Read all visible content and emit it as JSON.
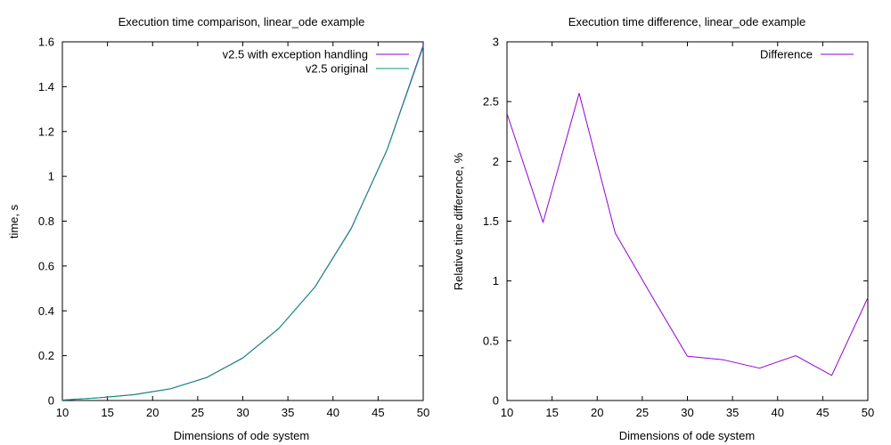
{
  "chart_data": [
    {
      "type": "line",
      "title": "Execution time comparison, linear_ode example",
      "xlabel": "Dimensions of ode system",
      "ylabel": "time, s",
      "xlim": [
        10,
        50
      ],
      "ylim": [
        0,
        1.6
      ],
      "x_ticks": [
        "10",
        "15",
        "20",
        "25",
        "30",
        "35",
        "40",
        "45",
        "50"
      ],
      "y_ticks": [
        "0",
        "0.2",
        "0.4",
        "0.6",
        "0.8",
        "1",
        "1.2",
        "1.4",
        "1.6"
      ],
      "grid": false,
      "legend_position": "top-right",
      "x": [
        10,
        14,
        18,
        22,
        26,
        30,
        34,
        38,
        42,
        46,
        50
      ],
      "series": [
        {
          "name": "v2.5 with exception handling",
          "color": "#9400d3",
          "values": [
            0.002,
            0.012,
            0.027,
            0.053,
            0.103,
            0.19,
            0.322,
            0.507,
            0.767,
            1.12,
            1.585
          ]
        },
        {
          "name": "v2.5 original",
          "color": "#009e73",
          "values": [
            0.002,
            0.012,
            0.026,
            0.052,
            0.102,
            0.189,
            0.321,
            0.506,
            0.765,
            1.118,
            1.578
          ]
        }
      ]
    },
    {
      "type": "line",
      "title": "Execution time difference, linear_ode example",
      "xlabel": "Dimensions of ode system",
      "ylabel": "Relative time difference, %",
      "xlim": [
        10,
        50
      ],
      "ylim": [
        0,
        3
      ],
      "x_ticks": [
        "10",
        "15",
        "20",
        "25",
        "30",
        "35",
        "40",
        "45",
        "50"
      ],
      "y_ticks": [
        "0",
        "0.5",
        "1",
        "1.5",
        "2",
        "2.5",
        "3"
      ],
      "grid": false,
      "legend_position": "top-right",
      "x": [
        10,
        14,
        18,
        22,
        26,
        30,
        34,
        38,
        42,
        46,
        50
      ],
      "series": [
        {
          "name": "Difference",
          "color": "#9400d3",
          "values": [
            2.4,
            1.49,
            2.57,
            1.4,
            0.88,
            0.37,
            0.34,
            0.27,
            0.375,
            0.21,
            0.86
          ]
        }
      ]
    }
  ]
}
